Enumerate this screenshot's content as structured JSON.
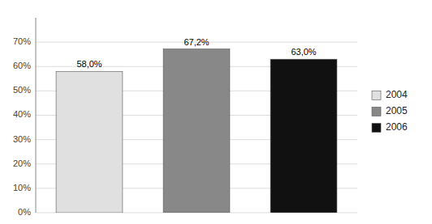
{
  "chart_data": {
    "type": "bar",
    "categories": [
      "2004",
      "2005",
      "2006"
    ],
    "values": [
      0.58,
      0.672,
      0.63
    ],
    "value_labels": [
      "58,0%",
      "67,2%",
      "63,0%"
    ],
    "data_labels": true,
    "colors": [
      "#e0e0e0",
      "#888888",
      "#111111"
    ],
    "ylim": [
      0,
      0.8
    ],
    "yticks": [
      {
        "value": 0.0,
        "label": "0%"
      },
      {
        "value": 0.1,
        "label": "10%"
      },
      {
        "value": 0.2,
        "label": "20%"
      },
      {
        "value": 0.3,
        "label": "30%"
      },
      {
        "value": 0.4,
        "label": "40%"
      },
      {
        "value": 0.5,
        "label": "50%"
      },
      {
        "value": 0.6,
        "label": "60%"
      },
      {
        "value": 0.7,
        "label": "70%"
      }
    ],
    "grid": true,
    "legend": "right",
    "tick_labels": "y"
  }
}
